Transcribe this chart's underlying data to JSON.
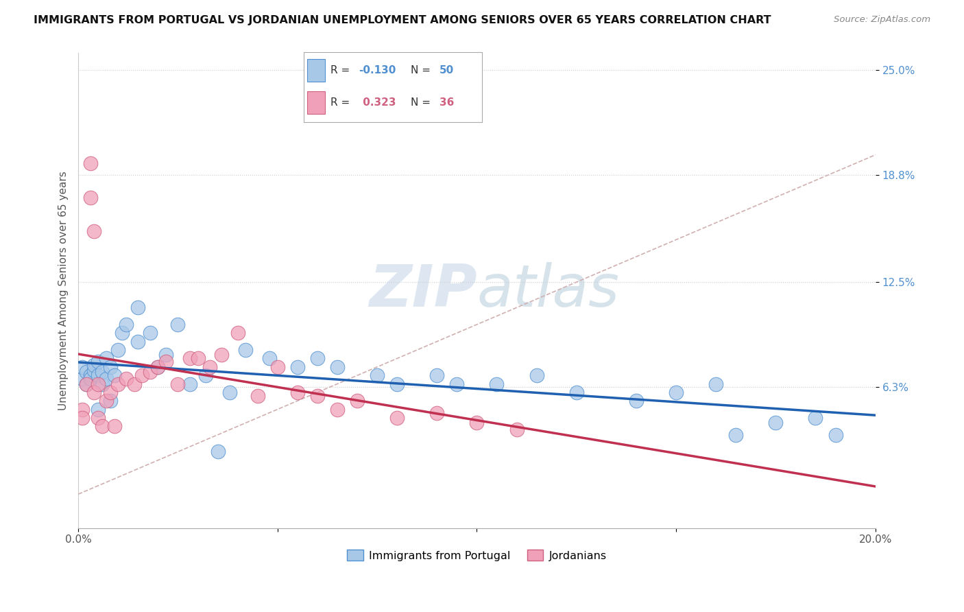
{
  "title": "IMMIGRANTS FROM PORTUGAL VS JORDANIAN UNEMPLOYMENT AMONG SENIORS OVER 65 YEARS CORRELATION CHART",
  "source": "Source: ZipAtlas.com",
  "ylabel": "Unemployment Among Seniors over 65 years",
  "xlim": [
    0.0,
    0.2
  ],
  "ylim": [
    -0.02,
    0.26
  ],
  "yticks": [
    0.063,
    0.125,
    0.188,
    0.25
  ],
  "ytick_labels": [
    "6.3%",
    "12.5%",
    "18.8%",
    "25.0%"
  ],
  "xticks": [
    0.0,
    0.05,
    0.1,
    0.15,
    0.2
  ],
  "xtick_labels": [
    "0.0%",
    "",
    "",
    "",
    "20.0%"
  ],
  "color_blue": "#a8c8e8",
  "color_pink": "#f0a0b8",
  "color_blue_edge": "#5090d0",
  "color_pink_edge": "#d06080",
  "color_trend_blue": "#2060b0",
  "color_trend_pink": "#c03050",
  "color_diagonal": "#d0b0b0",
  "watermark_color": "#d8e4f0",
  "portugal_x": [
    0.001,
    0.001,
    0.002,
    0.002,
    0.003,
    0.003,
    0.004,
    0.004,
    0.005,
    0.005,
    0.006,
    0.006,
    0.007,
    0.007,
    0.008,
    0.009,
    0.01,
    0.011,
    0.012,
    0.015,
    0.018,
    0.02,
    0.022,
    0.025,
    0.028,
    0.032,
    0.038,
    0.042,
    0.048,
    0.055,
    0.06,
    0.065,
    0.075,
    0.08,
    0.09,
    0.095,
    0.105,
    0.115,
    0.125,
    0.14,
    0.15,
    0.16,
    0.165,
    0.175,
    0.185,
    0.19,
    0.005,
    0.008,
    0.015,
    0.035
  ],
  "portugal_y": [
    0.068,
    0.075,
    0.072,
    0.065,
    0.07,
    0.068,
    0.073,
    0.076,
    0.07,
    0.078,
    0.065,
    0.072,
    0.068,
    0.08,
    0.075,
    0.07,
    0.085,
    0.095,
    0.1,
    0.11,
    0.095,
    0.075,
    0.082,
    0.1,
    0.065,
    0.07,
    0.06,
    0.085,
    0.08,
    0.075,
    0.08,
    0.075,
    0.07,
    0.065,
    0.07,
    0.065,
    0.065,
    0.07,
    0.06,
    0.055,
    0.06,
    0.065,
    0.035,
    0.042,
    0.045,
    0.035,
    0.05,
    0.055,
    0.09,
    0.025
  ],
  "jordan_x": [
    0.001,
    0.001,
    0.002,
    0.003,
    0.003,
    0.004,
    0.004,
    0.005,
    0.005,
    0.006,
    0.007,
    0.008,
    0.009,
    0.01,
    0.012,
    0.014,
    0.016,
    0.018,
    0.02,
    0.022,
    0.025,
    0.028,
    0.03,
    0.033,
    0.036,
    0.04,
    0.045,
    0.05,
    0.055,
    0.06,
    0.065,
    0.07,
    0.08,
    0.09,
    0.1,
    0.11
  ],
  "jordan_y": [
    0.05,
    0.045,
    0.065,
    0.195,
    0.175,
    0.155,
    0.06,
    0.065,
    0.045,
    0.04,
    0.055,
    0.06,
    0.04,
    0.065,
    0.068,
    0.065,
    0.07,
    0.072,
    0.075,
    0.078,
    0.065,
    0.08,
    0.08,
    0.075,
    0.082,
    0.095,
    0.058,
    0.075,
    0.06,
    0.058,
    0.05,
    0.055,
    0.045,
    0.048,
    0.042,
    0.038
  ]
}
